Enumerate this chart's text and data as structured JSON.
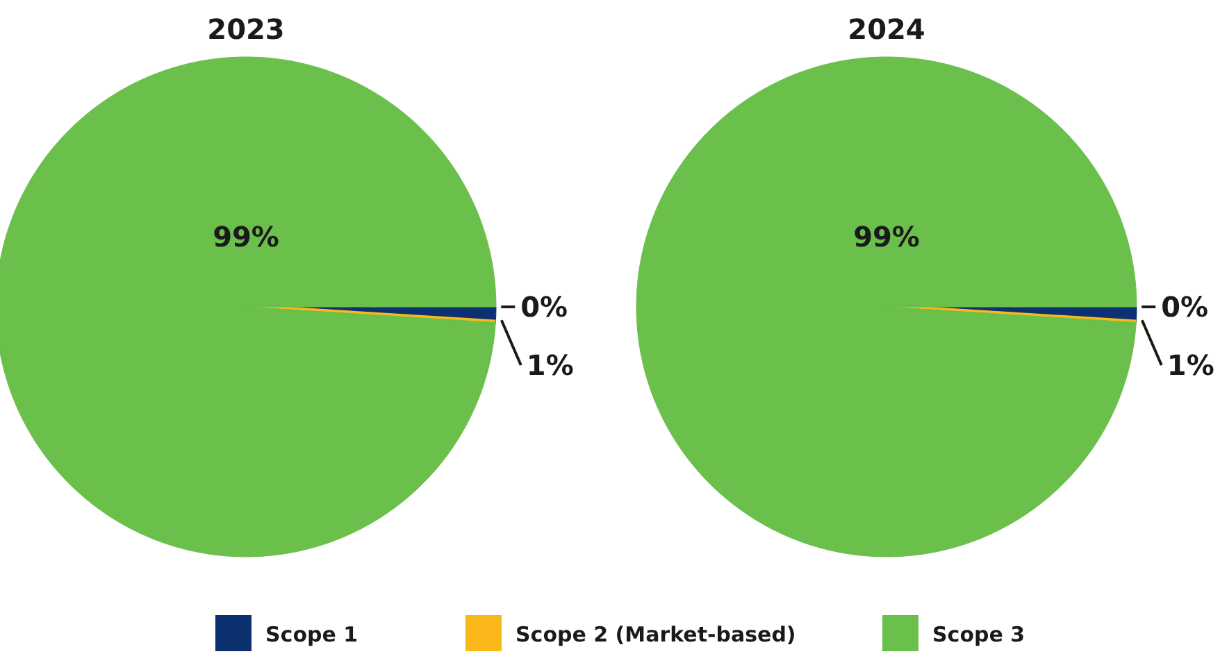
{
  "chart_data": [
    {
      "type": "pie",
      "title": "2023",
      "categories": [
        "Scope 1",
        "Scope 2 (Market-based)",
        "Scope 3"
      ],
      "values": [
        1,
        0,
        99
      ],
      "colors": [
        "#0b3170",
        "#fbb81b",
        "#6bbf4b"
      ],
      "value_labels": [
        "1%",
        "0%",
        "99%"
      ],
      "legend": "bottom"
    },
    {
      "type": "pie",
      "title": "2024",
      "categories": [
        null,
        null,
        null
      ],
      "values": [
        1,
        0,
        99
      ],
      "colors": [
        "#0b3170",
        "#fbb81b",
        "#6bbf4b"
      ],
      "value_labels": [
        "1%",
        "0%",
        "99%"
      ]
    }
  ]
}
